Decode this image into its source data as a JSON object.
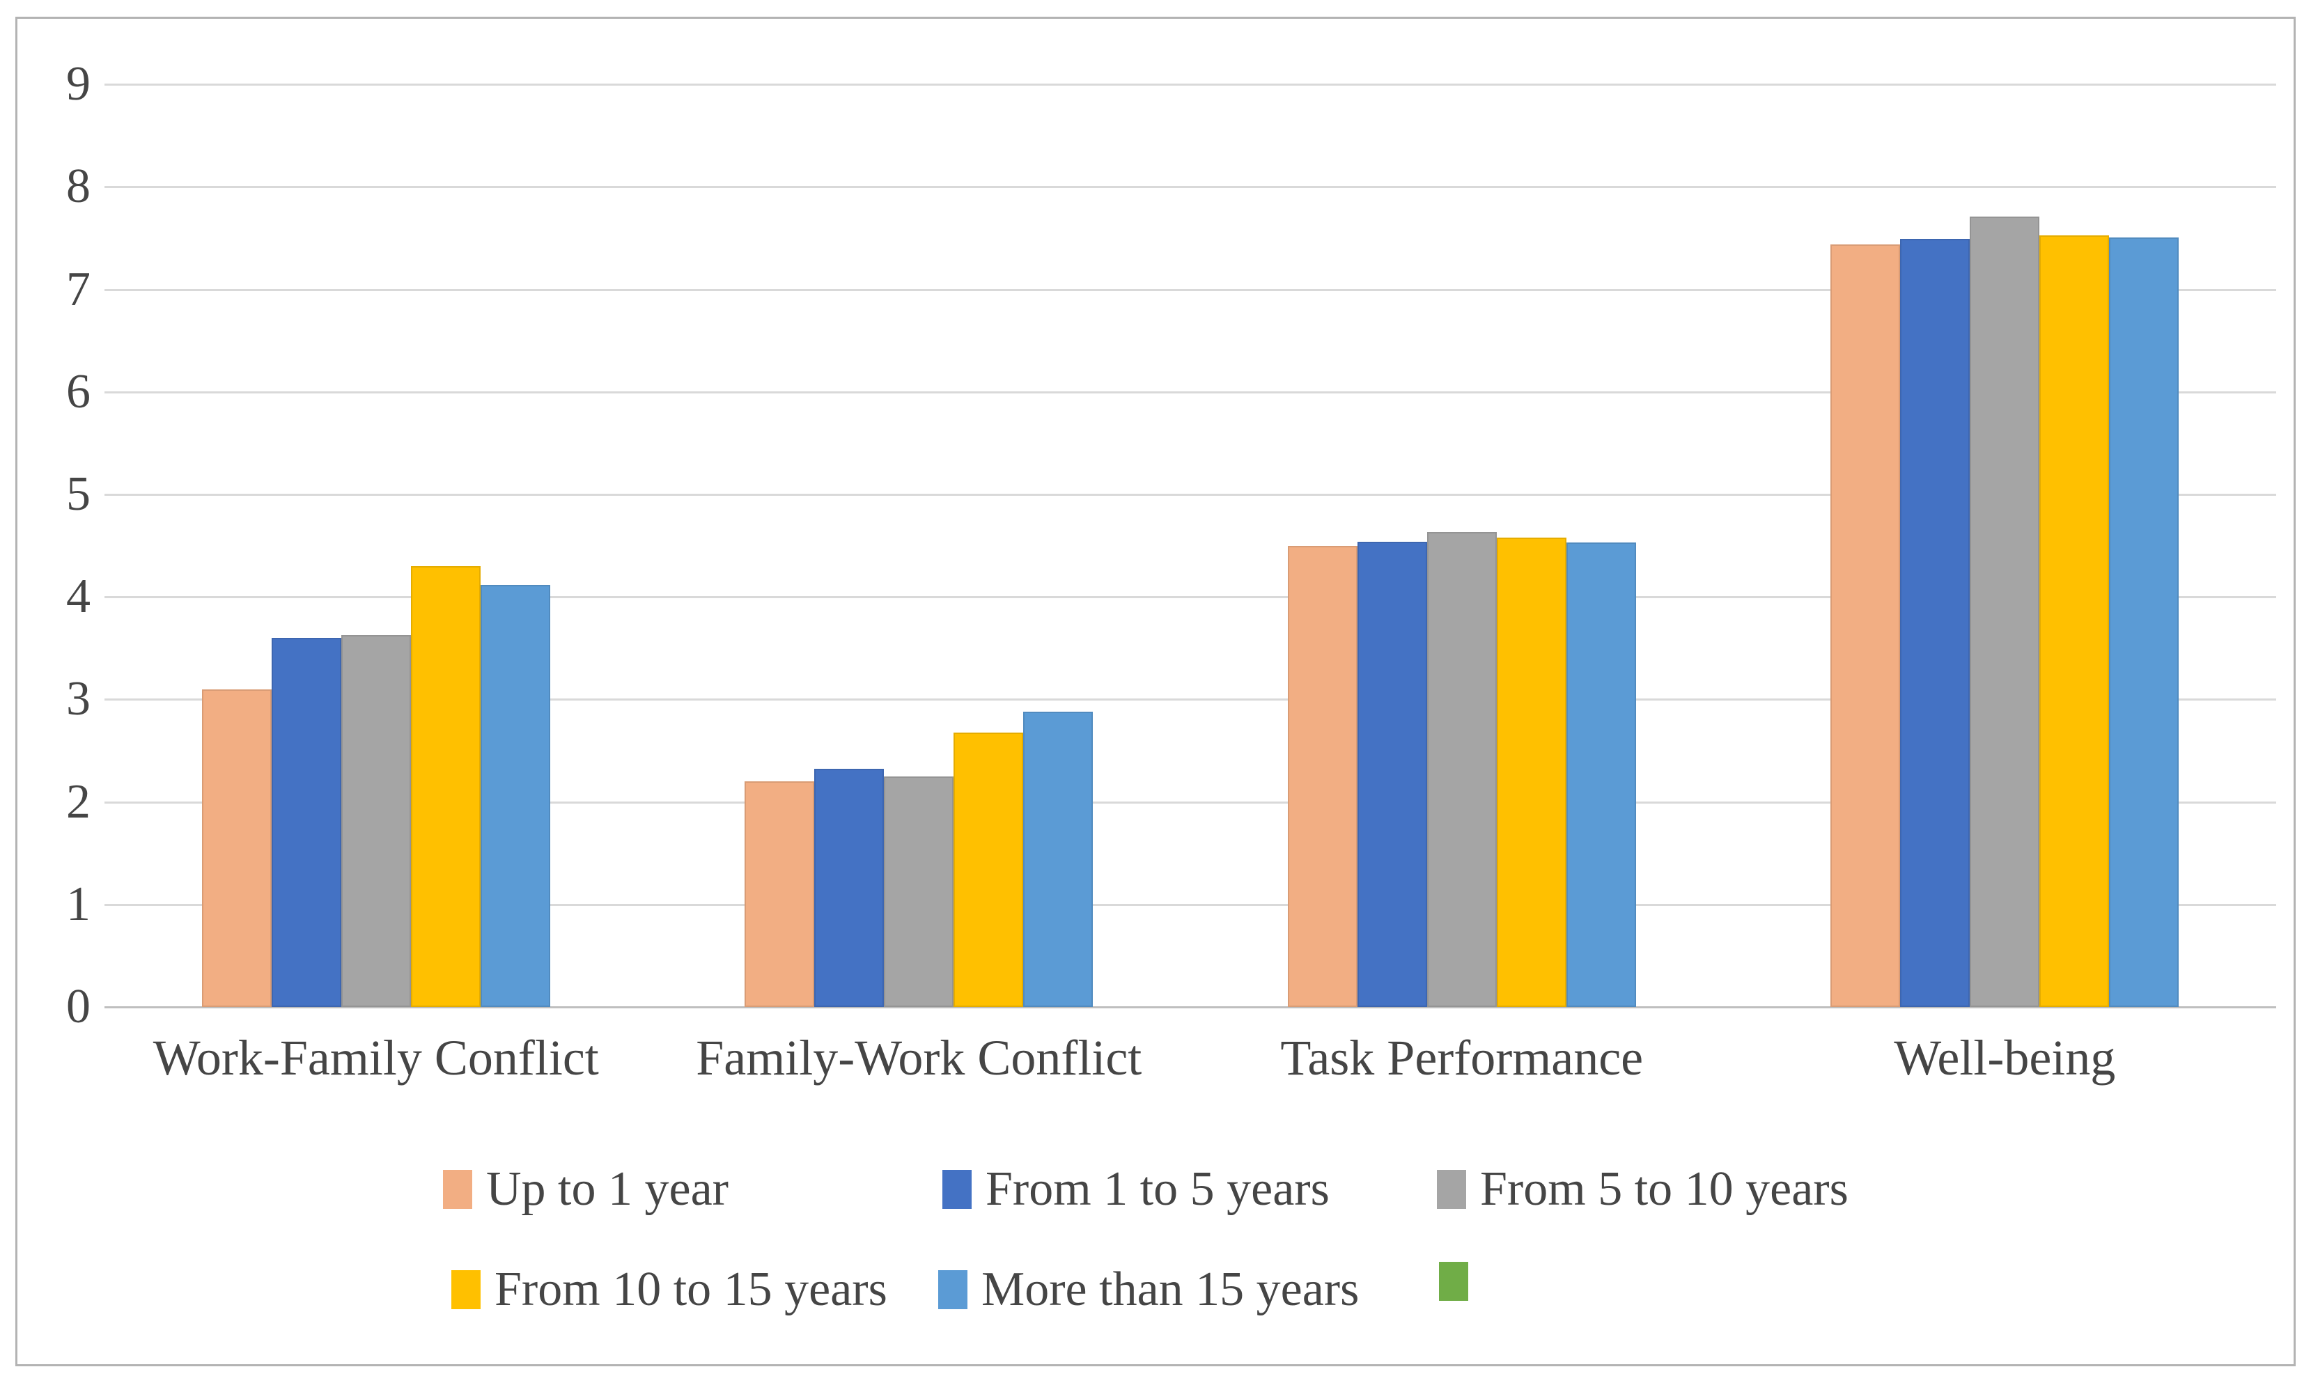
{
  "chart_data": {
    "type": "bar",
    "title": "",
    "xlabel": "",
    "ylabel": "",
    "categories": [
      "Work-Family Conflict",
      "Family-Work Conflict",
      "Task Performance",
      "Well-being"
    ],
    "series": [
      {
        "name": "Up to 1 year",
        "color": "#F2AE83",
        "values": [
          3.1,
          2.2,
          4.5,
          7.44
        ]
      },
      {
        "name": "From 1 to 5 years",
        "color": "#4472C4",
        "values": [
          3.6,
          2.32,
          4.54,
          7.49
        ]
      },
      {
        "name": "From 5 to 10 years",
        "color": "#A5A5A5",
        "values": [
          3.63,
          2.25,
          4.63,
          7.71
        ]
      },
      {
        "name": "From 10 to 15 years",
        "color": "#FFC000",
        "values": [
          4.3,
          2.68,
          4.58,
          7.53
        ]
      },
      {
        "name": "More than 15 years",
        "color": "#5B9BD5",
        "values": [
          4.12,
          2.88,
          4.53,
          7.51
        ]
      },
      {
        "name": "",
        "color": "#70AD47",
        "values": []
      }
    ],
    "ylim": [
      0,
      9
    ],
    "yticks": [
      "0",
      "1",
      "2",
      "3",
      "4",
      "5",
      "6",
      "7",
      "8",
      "9"
    ],
    "grid": true,
    "legend_position": "bottom",
    "legend_rows": [
      [
        "Up to 1 year",
        "From 1 to 5 years",
        "From 5 to 10 years"
      ],
      [
        "From 10 to 15 years",
        "More than 15 years",
        ""
      ]
    ]
  },
  "colors": {
    "gridline": "#D9D9D9",
    "zero_line": "#BFBFBF",
    "frame_border": "#B3B3B3",
    "text": "#454545",
    "background": "#FFFFFF"
  }
}
